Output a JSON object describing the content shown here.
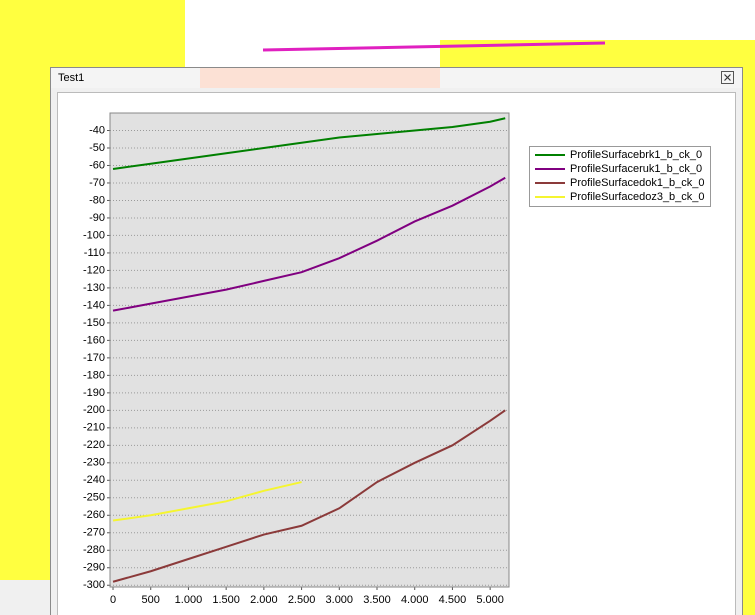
{
  "window": {
    "title": "Test1"
  },
  "chart_data": {
    "type": "line",
    "x": [
      0,
      500,
      1000,
      1500,
      2000,
      2500,
      3000,
      3500,
      4000,
      4500,
      5000,
      5200
    ],
    "series": [
      {
        "name": "ProfileSurfacebrk1_b_ck_0",
        "color": "#008000",
        "values": [
          -62,
          -59,
          -56,
          -53,
          -50,
          -47,
          -44,
          -42,
          -40,
          -38,
          -35,
          -33
        ]
      },
      {
        "name": "ProfileSurfaceruk1_b_ck_0",
        "color": "#800080",
        "values": [
          -143,
          -139,
          -135,
          -131,
          -126,
          -121,
          -113,
          -103,
          -92,
          -83,
          -72,
          -67
        ]
      },
      {
        "name": "ProfileSurfacedok1_b_ck_0",
        "color": "#8b3a3a",
        "values": [
          -298,
          -292,
          -285,
          -278,
          -271,
          -266,
          -256,
          -241,
          -230,
          -220,
          -206,
          -200
        ]
      },
      {
        "name": "ProfileSurfacedoz3_b_ck_0",
        "color": "#f5f530",
        "values": [
          -263,
          -260,
          -256,
          -252,
          -246,
          -241,
          null,
          null,
          null,
          null,
          null,
          null
        ]
      }
    ],
    "xlim": [
      -40,
      5250
    ],
    "ylim": [
      -301,
      -30
    ],
    "xticks": [
      0,
      500,
      {
        "value": 1000,
        "label": "1.000"
      },
      {
        "value": 1500,
        "label": "1.500"
      },
      {
        "value": 2000,
        "label": "2.000"
      },
      {
        "value": 2500,
        "label": "2.500"
      },
      {
        "value": 3000,
        "label": "3.000"
      },
      {
        "value": 3500,
        "label": "3.500"
      },
      {
        "value": 4000,
        "label": "4.000"
      },
      {
        "value": 4500,
        "label": "4.500"
      },
      {
        "value": 5000,
        "label": "5.000"
      }
    ],
    "yticks": [
      -40,
      -50,
      -60,
      -70,
      -80,
      -90,
      -100,
      -110,
      -120,
      -130,
      -140,
      -150,
      -160,
      -170,
      -180,
      -190,
      -200,
      -210,
      -220,
      -230,
      -240,
      -250,
      -260,
      -270,
      -280,
      -290,
      -300
    ],
    "grid": true,
    "legend": "right"
  }
}
